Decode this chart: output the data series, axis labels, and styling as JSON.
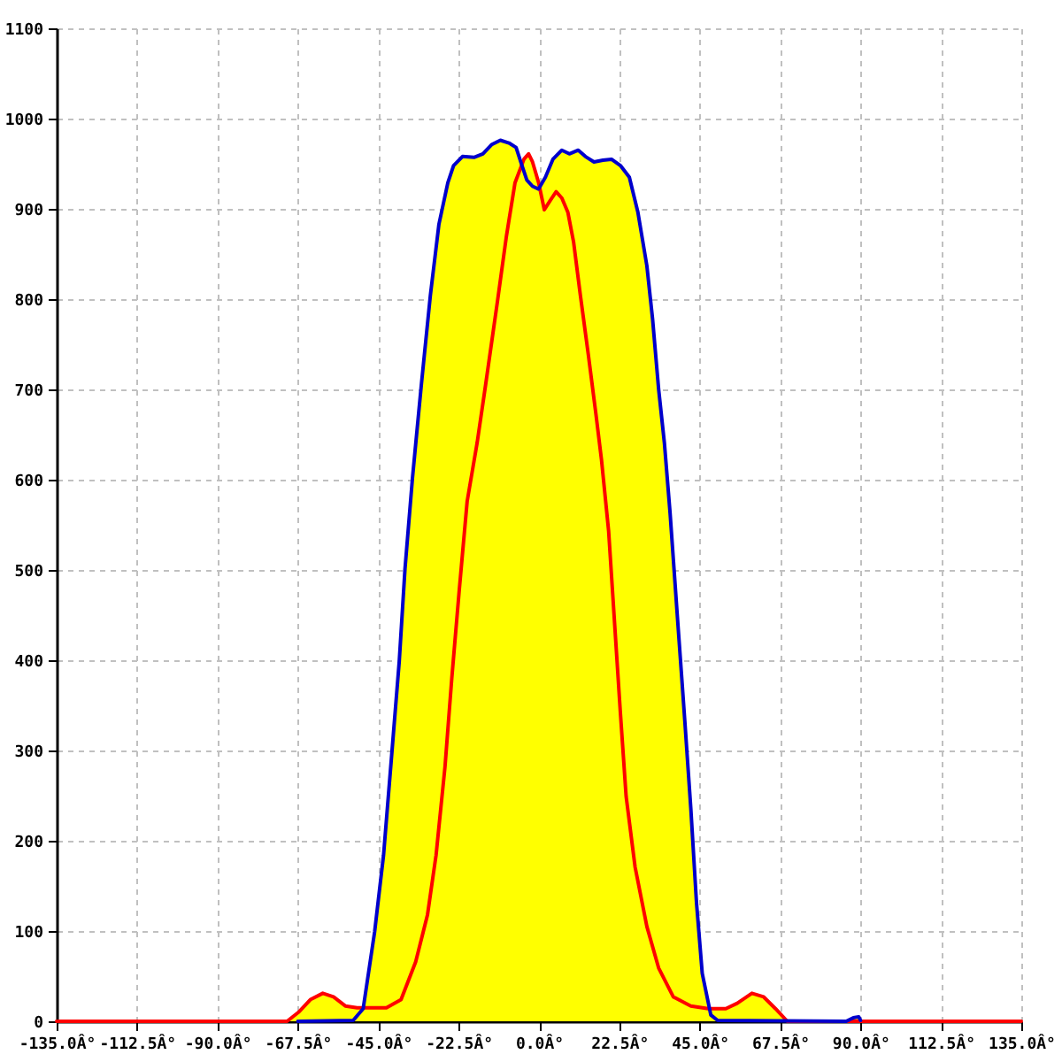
{
  "chart_data": {
    "type": "line",
    "xlim": [
      -135,
      135
    ],
    "ylim": [
      0,
      1100
    ],
    "xticks": [
      {
        "value": -135,
        "label": "-135.0Â°"
      },
      {
        "value": -112.5,
        "label": "-112.5Â°"
      },
      {
        "value": -90,
        "label": "-90.0Â°"
      },
      {
        "value": -67.5,
        "label": "-67.5Â°"
      },
      {
        "value": -45,
        "label": "-45.0Â°"
      },
      {
        "value": -22.5,
        "label": "-22.5Â°"
      },
      {
        "value": 0,
        "label": "0.0Â°"
      },
      {
        "value": 22.5,
        "label": "22.5Â°"
      },
      {
        "value": 45,
        "label": "45.0Â°"
      },
      {
        "value": 67.5,
        "label": "67.5Â°"
      },
      {
        "value": 90,
        "label": "90.0Â°"
      },
      {
        "value": 112.5,
        "label": "112.5Â°"
      },
      {
        "value": 135,
        "label": "135.0Â°"
      }
    ],
    "yticks": [
      0,
      100,
      200,
      300,
      400,
      500,
      600,
      700,
      800,
      900,
      1000,
      1100
    ],
    "grid": true,
    "series": [
      {
        "type": "area",
        "color": "#ffff00",
        "x": [
          -70.5,
          -67.3,
          -64,
          -60.5,
          -57.5,
          -54.2,
          -50.9,
          -49.2,
          -46,
          -43.5,
          -41.1,
          -39.1,
          -37.5,
          -35.4,
          -32.9,
          -30.4,
          -28,
          -25.5,
          -23.9,
          -21.4,
          -18.2,
          -15.7,
          -13.3,
          -10.8,
          -8.4,
          -6.4,
          -5.1,
          -4.8,
          -4.2,
          -2.9,
          -1.8,
          0.2,
          1.8,
          3.9,
          6.4,
          8.5,
          11,
          13,
          15.4,
          17.9,
          20.3,
          22.8,
          25.3,
          27.7,
          30.2,
          31.8,
          33.5,
          35.1,
          36.7,
          38.8,
          40.8,
          42.5,
          44.1,
          45.7,
          47.7,
          52.3,
          55.5,
          59.6,
          62.9,
          66.2,
          69.5,
          86,
          88,
          89.5,
          90
        ],
        "values": [
          0,
          10,
          24,
          31,
          27,
          17,
          15,
          15,
          99,
          184,
          301,
          399,
          501,
          602,
          706,
          804,
          883,
          929,
          948,
          958,
          957,
          961,
          971,
          976,
          973,
          968,
          952,
          949,
          955,
          961,
          952,
          924,
          935,
          955,
          965,
          961,
          965,
          958,
          952,
          954,
          955,
          948,
          935,
          896,
          837,
          778,
          700,
          641,
          563,
          445,
          334,
          236,
          131,
          53,
          14,
          14,
          20,
          31,
          27,
          14,
          0,
          0,
          4,
          5,
          1
        ]
      },
      {
        "color": "#ff0000",
        "x": [
          -135,
          -70.5,
          -67.3,
          -64,
          -60.5,
          -57.5,
          -54.2,
          -50.9,
          -46,
          -42.7,
          -38.6,
          -34.5,
          -31.2,
          -28.8,
          -26.3,
          -24.4,
          -22.3,
          -20.1,
          -17.3,
          -14.9,
          -11.6,
          -9.1,
          -6.7,
          -4.2,
          -2.9,
          -1.8,
          -0.1,
          1.5,
          3.1,
          4.8,
          6.4,
          8.1,
          9.7,
          11.6,
          13.8,
          15.9,
          17.5,
          19.5,
          21.1,
          22.8,
          24.4,
          26.9,
          30.2,
          33.5,
          37.6,
          42.5,
          47.4,
          52.3,
          55.5,
          59.6,
          62.9,
          66.2,
          69.5,
          135
        ],
        "values": [
          0,
          0,
          10,
          24,
          31,
          27,
          17,
          15,
          15,
          15,
          24,
          66,
          118,
          184,
          282,
          380,
          478,
          576,
          641,
          706,
          798,
          870,
          929,
          955,
          961,
          952,
          929,
          899,
          909,
          919,
          912,
          896,
          863,
          804,
          739,
          674,
          622,
          543,
          445,
          341,
          249,
          171,
          105,
          59,
          27,
          17,
          14,
          14,
          20,
          31,
          27,
          14,
          0,
          0
        ]
      },
      {
        "color": "#0000cc",
        "x": [
          -67.5,
          -52,
          -49.2,
          -46,
          -43.5,
          -41.1,
          -39.1,
          -37.5,
          -35.4,
          -32.9,
          -30.4,
          -28,
          -25.5,
          -23.9,
          -21.4,
          -18.2,
          -15.7,
          -13.3,
          -10.8,
          -8.4,
          -6.4,
          -5.1,
          -3.4,
          -1.8,
          -0.1,
          1.8,
          3.9,
          6.4,
          8.5,
          11,
          13,
          15.4,
          17.9,
          20.3,
          22.8,
          25.3,
          27.7,
          30.2,
          31.8,
          33.5,
          35.1,
          36.7,
          38.8,
          40.8,
          42.5,
          44.1,
          45.7,
          48.1,
          50,
          86,
          88,
          89.5,
          90
        ],
        "values": [
          0,
          1,
          14,
          99,
          184,
          301,
          399,
          501,
          602,
          706,
          804,
          883,
          929,
          948,
          958,
          957,
          961,
          971,
          976,
          973,
          968,
          952,
          932,
          925,
          922,
          935,
          955,
          965,
          961,
          965,
          958,
          952,
          954,
          955,
          948,
          935,
          896,
          837,
          778,
          700,
          641,
          563,
          445,
          334,
          236,
          131,
          53,
          7,
          1,
          0,
          4,
          5,
          1
        ]
      }
    ]
  }
}
